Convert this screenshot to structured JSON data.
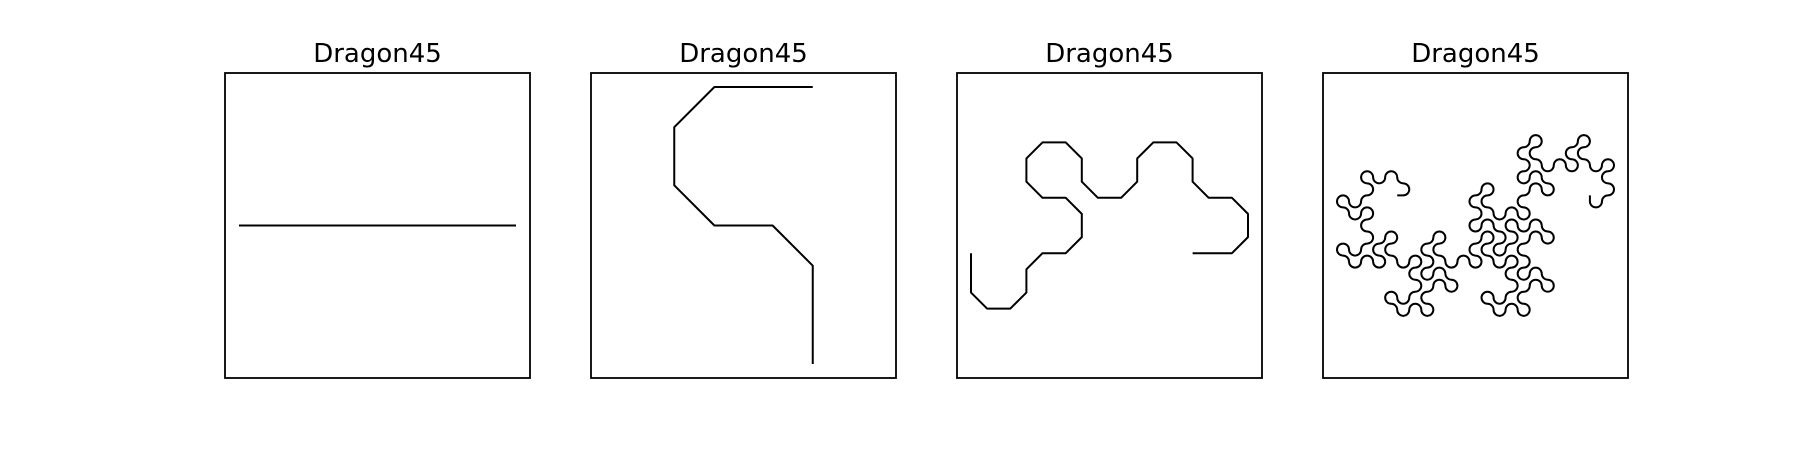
{
  "figure": {
    "line_color": "#000000",
    "background": "#ffffff"
  },
  "chart_data": [
    {
      "type": "line",
      "title": "Dragon45",
      "curve": "dragon",
      "iterations": 0,
      "corner_rounding": 0,
      "grid": false,
      "axes_visible": false
    },
    {
      "type": "line",
      "title": "Dragon45",
      "curve": "dragon",
      "iterations": 2,
      "corner_rounding": 0.29,
      "grid": false,
      "axes_visible": false
    },
    {
      "type": "line",
      "title": "Dragon45",
      "curve": "dragon",
      "iterations": 4,
      "corner_rounding": 0.29,
      "grid": false,
      "axes_visible": false
    },
    {
      "type": "line",
      "title": "Dragon45",
      "curve": "dragon",
      "iterations": 8,
      "corner_rounding": 0.5,
      "grid": false,
      "axes_visible": false
    }
  ]
}
